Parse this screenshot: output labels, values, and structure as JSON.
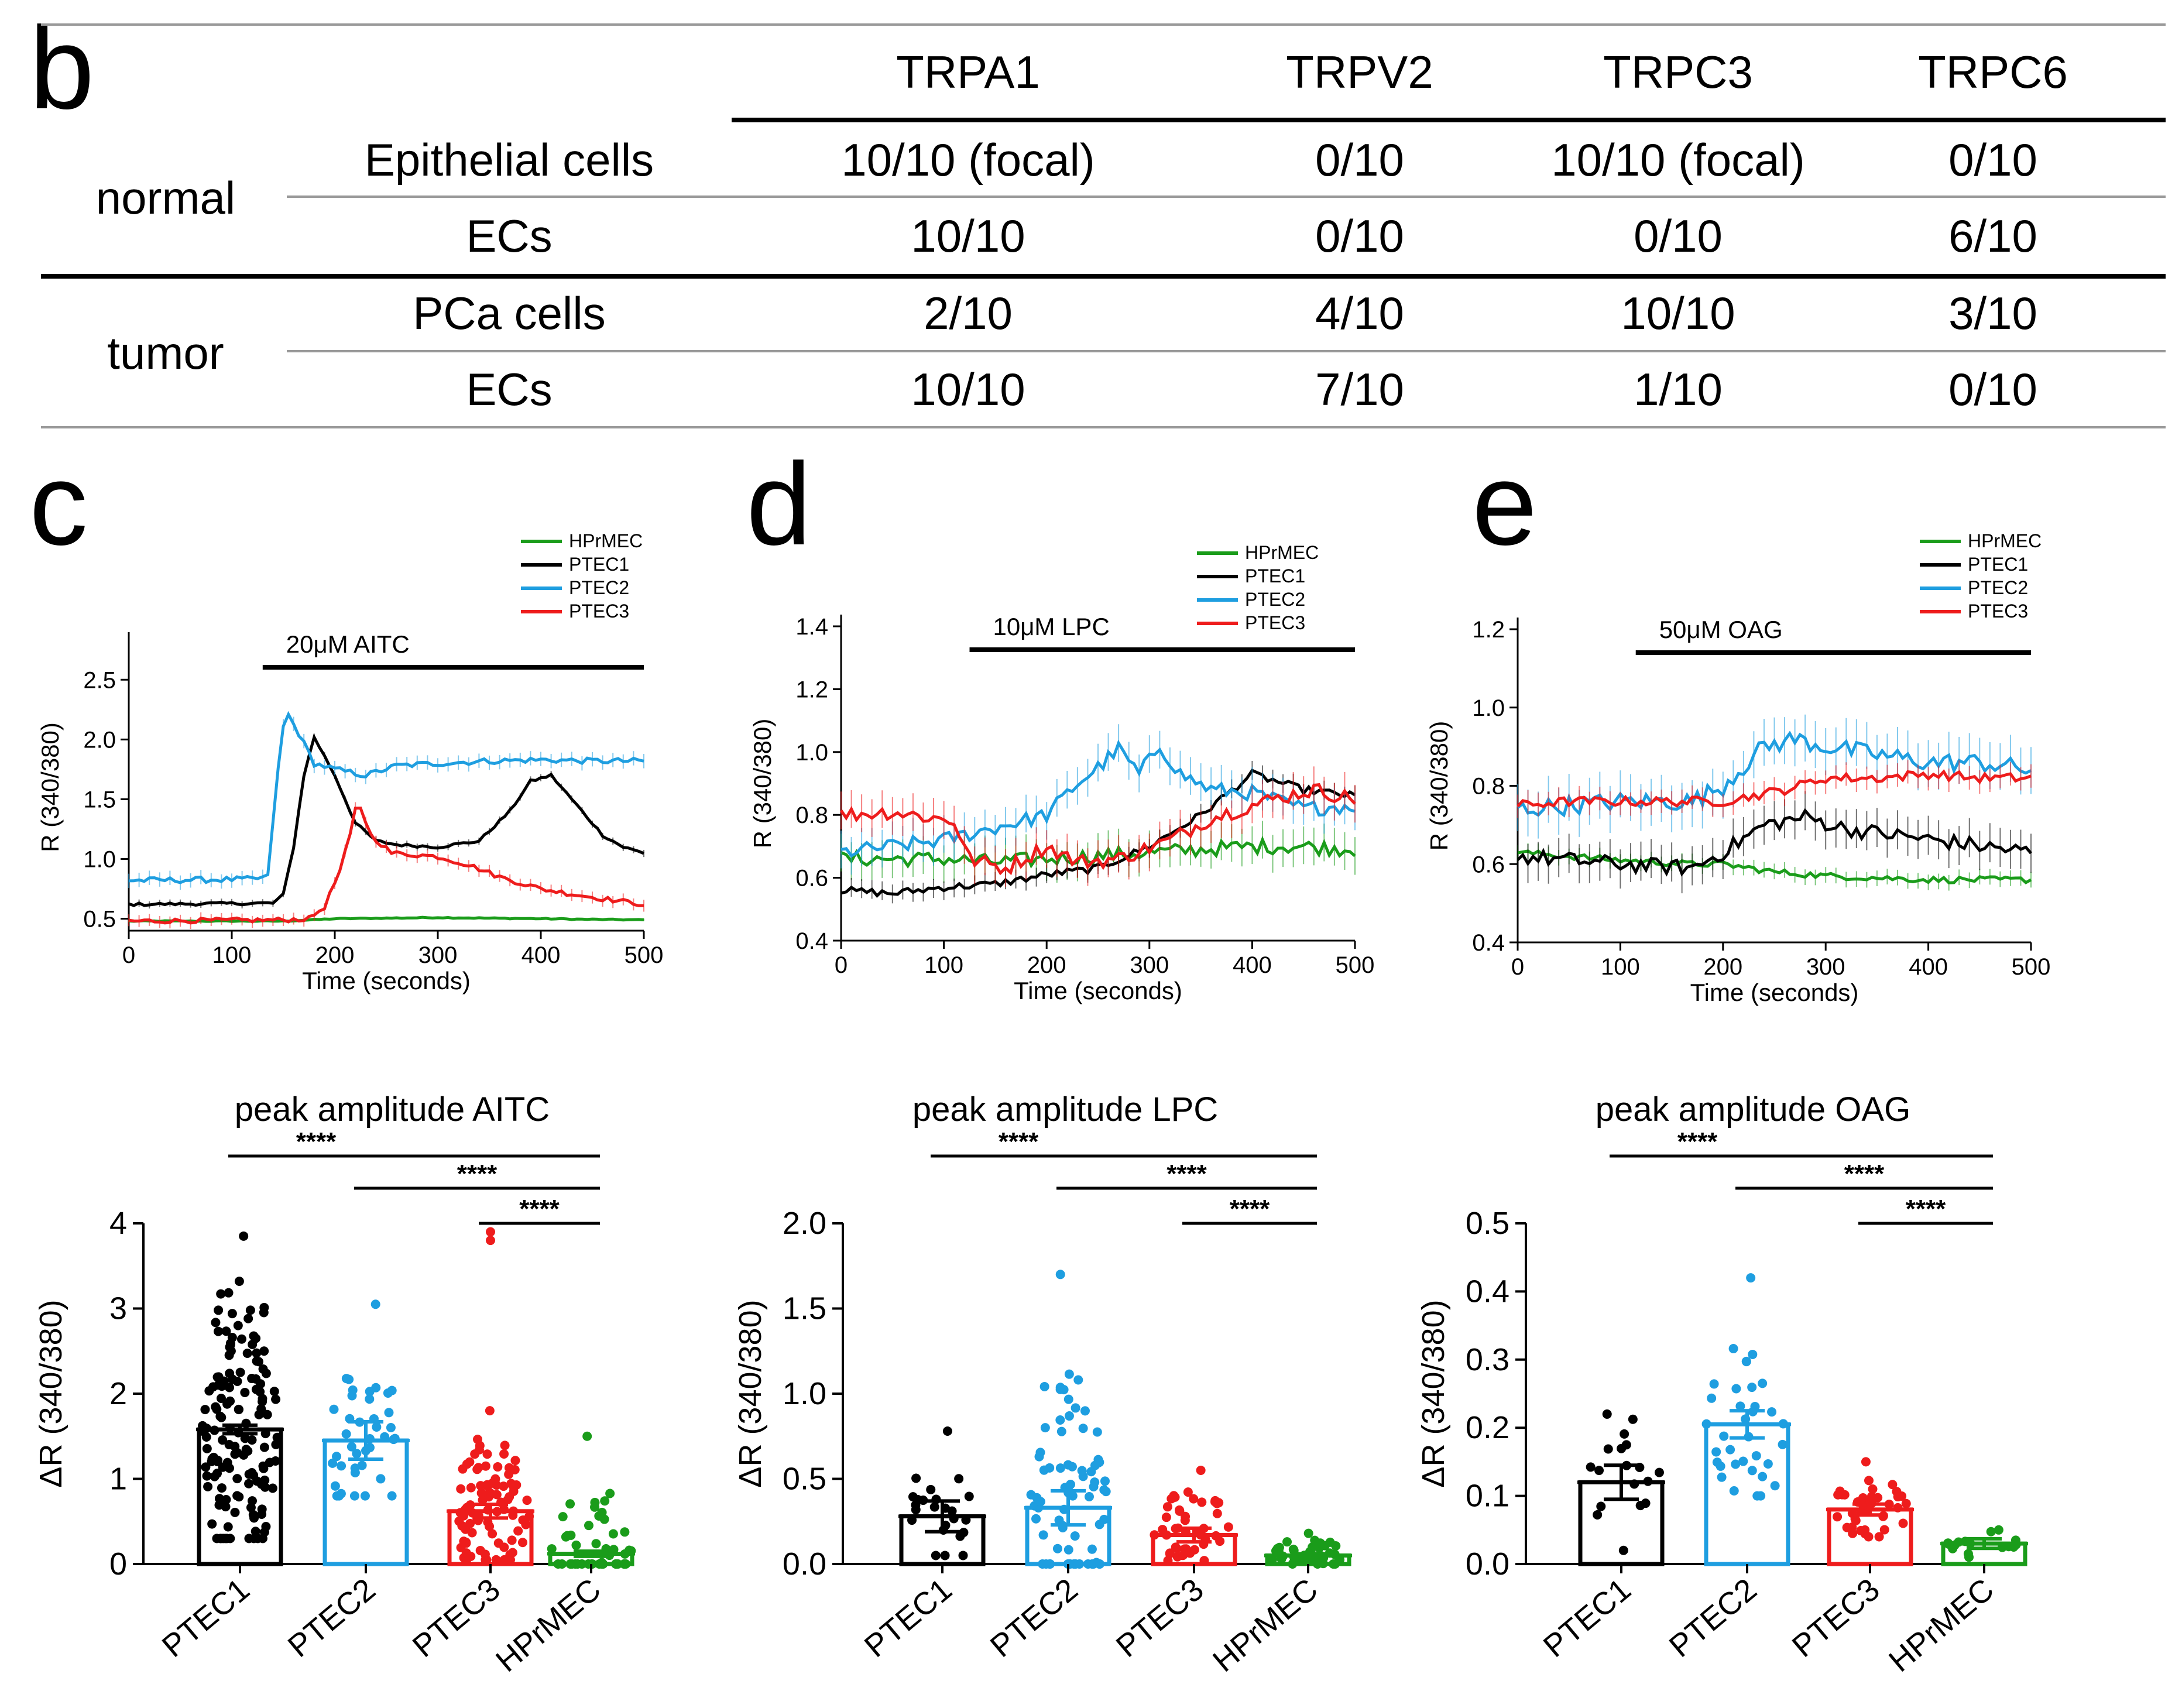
{
  "panel_letters": {
    "b": "b",
    "c": "c",
    "d": "d",
    "e": "e"
  },
  "table": {
    "columns": [
      "TRPA1",
      "TRPV2",
      "TRPC3",
      "TRPC6"
    ],
    "groups": [
      {
        "label": "normal",
        "rows": [
          {
            "label": "Epithelial cells",
            "values": [
              "10/10 (focal)",
              "0/10",
              "10/10 (focal)",
              "0/10"
            ]
          },
          {
            "label": "ECs",
            "values": [
              "10/10",
              "0/10",
              "0/10",
              "6/10"
            ]
          }
        ]
      },
      {
        "label": "tumor",
        "rows": [
          {
            "label": "PCa cells",
            "values": [
              "2/10",
              "4/10",
              "10/10",
              "3/10"
            ]
          },
          {
            "label": "ECs",
            "values": [
              "10/10",
              "7/10",
              "1/10",
              "0/10"
            ]
          }
        ]
      }
    ]
  },
  "colors": {
    "HPrMEC": "#1a9c1a",
    "PTEC1": "#000000",
    "PTEC2": "#1e9ee0",
    "PTEC3": "#ee1c1c"
  },
  "chart_data": [
    {
      "panel": "c",
      "type": "line",
      "xlabel": "Time (seconds)",
      "ylabel": "R (340/380)",
      "xlim": [
        0,
        500
      ],
      "ylim": [
        0.4,
        2.8
      ],
      "xticks": [
        "0",
        "100",
        "200",
        "300",
        "400",
        "500"
      ],
      "yticks": [
        "0.5",
        "1.0",
        "1.5",
        "2.0",
        "2.5"
      ],
      "stimulus": {
        "label": "20μM AITC",
        "start": 130,
        "end": 500
      },
      "legend": [
        "HPrMEC",
        "PTEC1",
        "PTEC2",
        "PTEC3"
      ],
      "series": [
        {
          "name": "HPrMEC",
          "points": [
            [
              0,
              0.48
            ],
            [
              150,
              0.48
            ],
            [
              200,
              0.5
            ],
            [
              300,
              0.51
            ],
            [
              400,
              0.5
            ],
            [
              500,
              0.49
            ]
          ],
          "err": 0.01
        },
        {
          "name": "PTEC1",
          "points": [
            [
              0,
              0.62
            ],
            [
              140,
              0.63
            ],
            [
              150,
              0.7
            ],
            [
              160,
              1.1
            ],
            [
              170,
              1.7
            ],
            [
              180,
              2.02
            ],
            [
              200,
              1.7
            ],
            [
              220,
              1.3
            ],
            [
              240,
              1.15
            ],
            [
              260,
              1.12
            ],
            [
              300,
              1.1
            ],
            [
              340,
              1.15
            ],
            [
              370,
              1.4
            ],
            [
              390,
              1.65
            ],
            [
              410,
              1.7
            ],
            [
              430,
              1.5
            ],
            [
              460,
              1.2
            ],
            [
              480,
              1.1
            ],
            [
              500,
              1.05
            ]
          ],
          "err": 0.03
        },
        {
          "name": "PTEC2",
          "points": [
            [
              0,
              0.82
            ],
            [
              120,
              0.83
            ],
            [
              135,
              0.85
            ],
            [
              143,
              1.6
            ],
            [
              152,
              2.25
            ],
            [
              165,
              2.05
            ],
            [
              180,
              1.8
            ],
            [
              200,
              1.75
            ],
            [
              230,
              1.7
            ],
            [
              260,
              1.78
            ],
            [
              300,
              1.8
            ],
            [
              350,
              1.82
            ],
            [
              400,
              1.83
            ],
            [
              450,
              1.82
            ],
            [
              500,
              1.82
            ]
          ],
          "err": 0.06
        },
        {
          "name": "PTEC3",
          "points": [
            [
              0,
              0.48
            ],
            [
              150,
              0.49
            ],
            [
              175,
              0.5
            ],
            [
              190,
              0.6
            ],
            [
              205,
              0.9
            ],
            [
              215,
              1.2
            ],
            [
              222,
              1.5
            ],
            [
              235,
              1.2
            ],
            [
              255,
              1.05
            ],
            [
              300,
              1.02
            ],
            [
              330,
              0.95
            ],
            [
              360,
              0.85
            ],
            [
              400,
              0.75
            ],
            [
              450,
              0.68
            ],
            [
              500,
              0.62
            ]
          ],
          "err": 0.05
        }
      ]
    },
    {
      "panel": "d",
      "type": "line",
      "xlabel": "Time (seconds)",
      "ylabel": "R (340/380)",
      "xlim": [
        0,
        500
      ],
      "ylim": [
        0.4,
        1.4
      ],
      "xticks": [
        "0",
        "100",
        "200",
        "300",
        "400",
        "500"
      ],
      "yticks": [
        "0.4",
        "0.6",
        "0.8",
        "1.0",
        "1.2",
        "1.4"
      ],
      "stimulus": {
        "label": "10μM LPC",
        "start": 125,
        "end": 500
      },
      "legend": [
        "HPrMEC",
        "PTEC1",
        "PTEC2",
        "PTEC3"
      ],
      "series": [
        {
          "name": "HPrMEC",
          "points": [
            [
              0,
              0.66
            ],
            [
              100,
              0.66
            ],
            [
              150,
              0.65
            ],
            [
              200,
              0.66
            ],
            [
              300,
              0.68
            ],
            [
              400,
              0.7
            ],
            [
              450,
              0.7
            ],
            [
              500,
              0.69
            ]
          ],
          "err": 0.06
        },
        {
          "name": "PTEC1",
          "points": [
            [
              0,
              0.56
            ],
            [
              50,
              0.55
            ],
            [
              100,
              0.57
            ],
            [
              150,
              0.58
            ],
            [
              200,
              0.61
            ],
            [
              250,
              0.63
            ],
            [
              300,
              0.7
            ],
            [
              350,
              0.8
            ],
            [
              400,
              0.93
            ],
            [
              450,
              0.88
            ],
            [
              500,
              0.86
            ]
          ],
          "err": 0.03
        },
        {
          "name": "PTEC2",
          "points": [
            [
              0,
              0.68
            ],
            [
              50,
              0.7
            ],
            [
              100,
              0.72
            ],
            [
              150,
              0.76
            ],
            [
              200,
              0.8
            ],
            [
              230,
              0.9
            ],
            [
              250,
              0.95
            ],
            [
              270,
              1.01
            ],
            [
              290,
              0.93
            ],
            [
              310,
              1.02
            ],
            [
              330,
              0.93
            ],
            [
              360,
              0.88
            ],
            [
              400,
              0.87
            ],
            [
              450,
              0.82
            ],
            [
              500,
              0.83
            ]
          ],
          "err": 0.06
        },
        {
          "name": "PTEC3",
          "points": [
            [
              0,
              0.8
            ],
            [
              50,
              0.81
            ],
            [
              110,
              0.78
            ],
            [
              125,
              0.66
            ],
            [
              160,
              0.63
            ],
            [
              200,
              0.7
            ],
            [
              230,
              0.65
            ],
            [
              270,
              0.66
            ],
            [
              320,
              0.72
            ],
            [
              360,
              0.79
            ],
            [
              420,
              0.85
            ],
            [
              460,
              0.88
            ],
            [
              500,
              0.85
            ]
          ],
          "err": 0.06
        }
      ]
    },
    {
      "panel": "e",
      "type": "line",
      "xlabel": "Time (seconds)",
      "ylabel": "R (340/380)",
      "xlim": [
        0,
        500
      ],
      "ylim": [
        0.4,
        1.2
      ],
      "xticks": [
        "0",
        "100",
        "200",
        "300",
        "400",
        "500"
      ],
      "yticks": [
        "0.4",
        "0.6",
        "0.8",
        "1.0",
        "1.2"
      ],
      "stimulus": {
        "label": "50μM OAG",
        "start": 115,
        "end": 500
      },
      "legend": [
        "HPrMEC",
        "PTEC1",
        "PTEC2",
        "PTEC3"
      ],
      "series": [
        {
          "name": "HPrMEC",
          "points": [
            [
              0,
              0.63
            ],
            [
              100,
              0.61
            ],
            [
              170,
              0.6
            ],
            [
              200,
              0.6
            ],
            [
              250,
              0.58
            ],
            [
              300,
              0.57
            ],
            [
              400,
              0.56
            ],
            [
              500,
              0.56
            ]
          ],
          "err": 0.02
        },
        {
          "name": "PTEC1",
          "points": [
            [
              0,
              0.62
            ],
            [
              50,
              0.61
            ],
            [
              100,
              0.6
            ],
            [
              170,
              0.59
            ],
            [
              200,
              0.63
            ],
            [
              240,
              0.7
            ],
            [
              280,
              0.72
            ],
            [
              320,
              0.69
            ],
            [
              380,
              0.67
            ],
            [
              440,
              0.65
            ],
            [
              500,
              0.63
            ]
          ],
          "err": 0.05
        },
        {
          "name": "PTEC2",
          "points": [
            [
              0,
              0.74
            ],
            [
              50,
              0.75
            ],
            [
              100,
              0.76
            ],
            [
              170,
              0.76
            ],
            [
              200,
              0.8
            ],
            [
              240,
              0.9
            ],
            [
              270,
              0.92
            ],
            [
              300,
              0.9
            ],
            [
              350,
              0.88
            ],
            [
              400,
              0.86
            ],
            [
              450,
              0.86
            ],
            [
              500,
              0.84
            ]
          ],
          "err": 0.06
        },
        {
          "name": "PTEC3",
          "points": [
            [
              0,
              0.75
            ],
            [
              50,
              0.76
            ],
            [
              100,
              0.76
            ],
            [
              170,
              0.76
            ],
            [
              200,
              0.76
            ],
            [
              260,
              0.79
            ],
            [
              300,
              0.82
            ],
            [
              350,
              0.82
            ],
            [
              400,
              0.83
            ],
            [
              450,
              0.82
            ],
            [
              500,
              0.82
            ]
          ],
          "err": 0.03
        }
      ]
    },
    {
      "panel": "c-bottom",
      "type": "bar",
      "title": "peak amplitude AITC",
      "ylabel": "ΔR (340/380)",
      "ylim": [
        0,
        4
      ],
      "yticks": [
        "0",
        "1",
        "2",
        "3",
        "4"
      ],
      "categories": [
        "PTEC1",
        "PTEC2",
        "PTEC3",
        "HPrMEC"
      ],
      "values": [
        1.58,
        1.45,
        0.62,
        0.12
      ],
      "errors": [
        0.05,
        0.22,
        0.08,
        0.03
      ],
      "dot_ranges": [
        [
          0.3,
          3.85
        ],
        [
          0.8,
          3.05
        ],
        [
          0.05,
          1.8
        ],
        [
          0.0,
          1.5
        ]
      ],
      "dot_counts": [
        150,
        40,
        90,
        45
      ],
      "outliers": [
        [
          2,
          3.8
        ],
        [
          2,
          3.9
        ]
      ],
      "significance": [
        "****",
        "****",
        "****"
      ]
    },
    {
      "panel": "d-bottom",
      "type": "bar",
      "title": "peak amplitude LPC",
      "ylabel": "ΔR (340/380)",
      "ylim": [
        0,
        2.0
      ],
      "yticks": [
        "0.0",
        "0.5",
        "1.0",
        "1.5",
        "2.0"
      ],
      "categories": [
        "PTEC1",
        "PTEC2",
        "PTEC3",
        "HPrMEC"
      ],
      "values": [
        0.28,
        0.33,
        0.17,
        0.05
      ],
      "errors": [
        0.09,
        0.1,
        0.04,
        0.01
      ],
      "dot_ranges": [
        [
          0.05,
          0.78
        ],
        [
          0.0,
          1.7
        ],
        [
          0.02,
          0.55
        ],
        [
          0.0,
          0.18
        ]
      ],
      "dot_counts": [
        24,
        75,
        45,
        40
      ],
      "outliers": [],
      "significance": [
        "****",
        "****",
        "****"
      ]
    },
    {
      "panel": "e-bottom",
      "type": "bar",
      "title": "peak amplitude OAG",
      "ylabel": "ΔR (340/380)",
      "ylim": [
        0,
        0.5
      ],
      "yticks": [
        "0.0",
        "0.1",
        "0.2",
        "0.3",
        "0.4",
        "0.5"
      ],
      "categories": [
        "PTEC1",
        "PTEC2",
        "PTEC3",
        "HPrMEC"
      ],
      "values": [
        0.12,
        0.205,
        0.08,
        0.03
      ],
      "errors": [
        0.025,
        0.02,
        0.008,
        0.007
      ],
      "dot_ranges": [
        [
          0.02,
          0.22
        ],
        [
          0.1,
          0.42
        ],
        [
          0.04,
          0.15
        ],
        [
          0.01,
          0.05
        ]
      ],
      "dot_counts": [
        18,
        35,
        40,
        16
      ],
      "outliers": [],
      "significance": [
        "****",
        "****",
        "****"
      ]
    }
  ]
}
